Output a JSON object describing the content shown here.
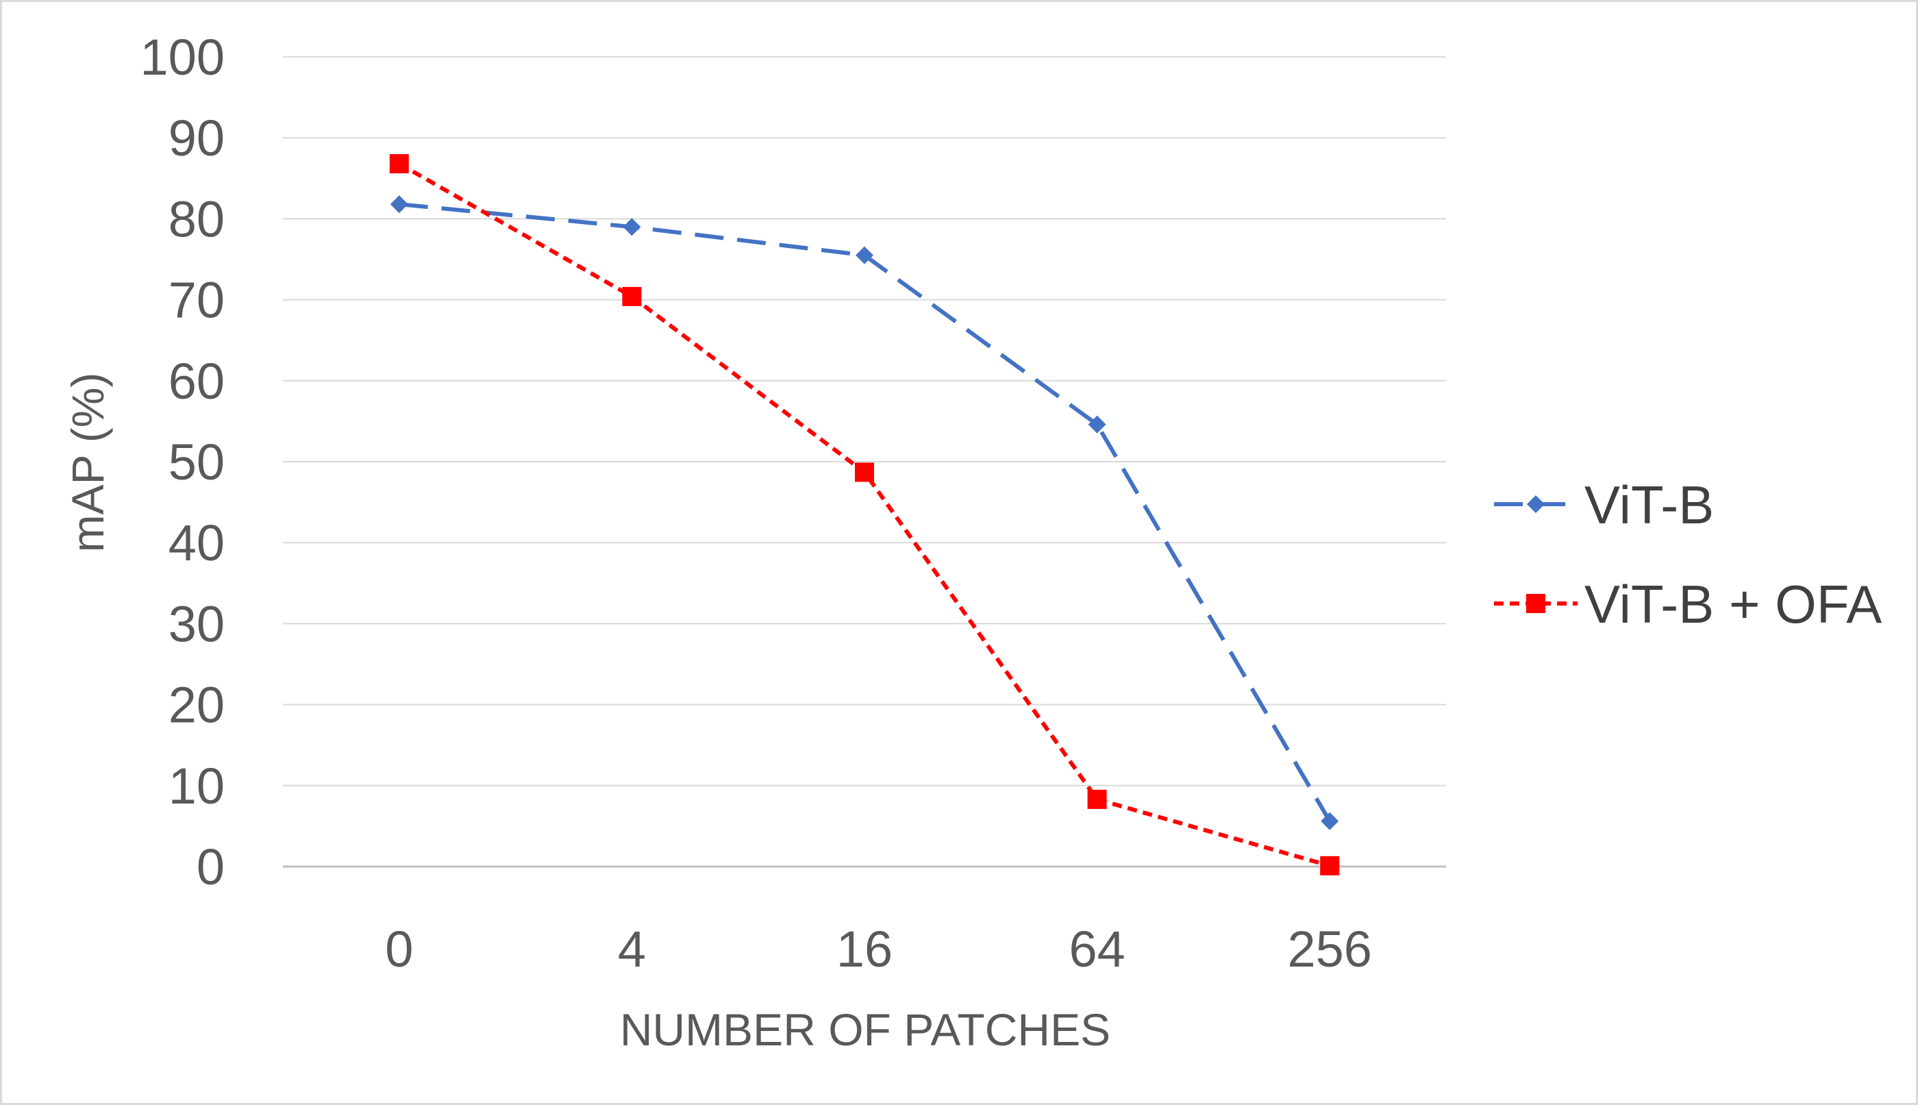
{
  "chart_data": {
    "type": "line",
    "title": "",
    "xlabel": "NUMBER OF PATCHES",
    "ylabel": "mAP (%)",
    "categories": [
      "0",
      "4",
      "16",
      "64",
      "256"
    ],
    "ylim": [
      0,
      100
    ],
    "yticks": [
      "0",
      "10",
      "20",
      "30",
      "40",
      "50",
      "60",
      "70",
      "80",
      "90",
      "100"
    ],
    "grid": true,
    "legend_position": "right",
    "series": [
      {
        "name": "ViT-B",
        "values": [
          81.8,
          79.0,
          75.5,
          54.6,
          5.6
        ],
        "color": "#4472c4",
        "marker": "diamond",
        "dash": "long-dash"
      },
      {
        "name": "ViT-B + OFA",
        "values": [
          86.8,
          70.4,
          48.7,
          8.3,
          0.1
        ],
        "color": "#ff0000",
        "marker": "square",
        "dash": "short-dash"
      }
    ]
  }
}
